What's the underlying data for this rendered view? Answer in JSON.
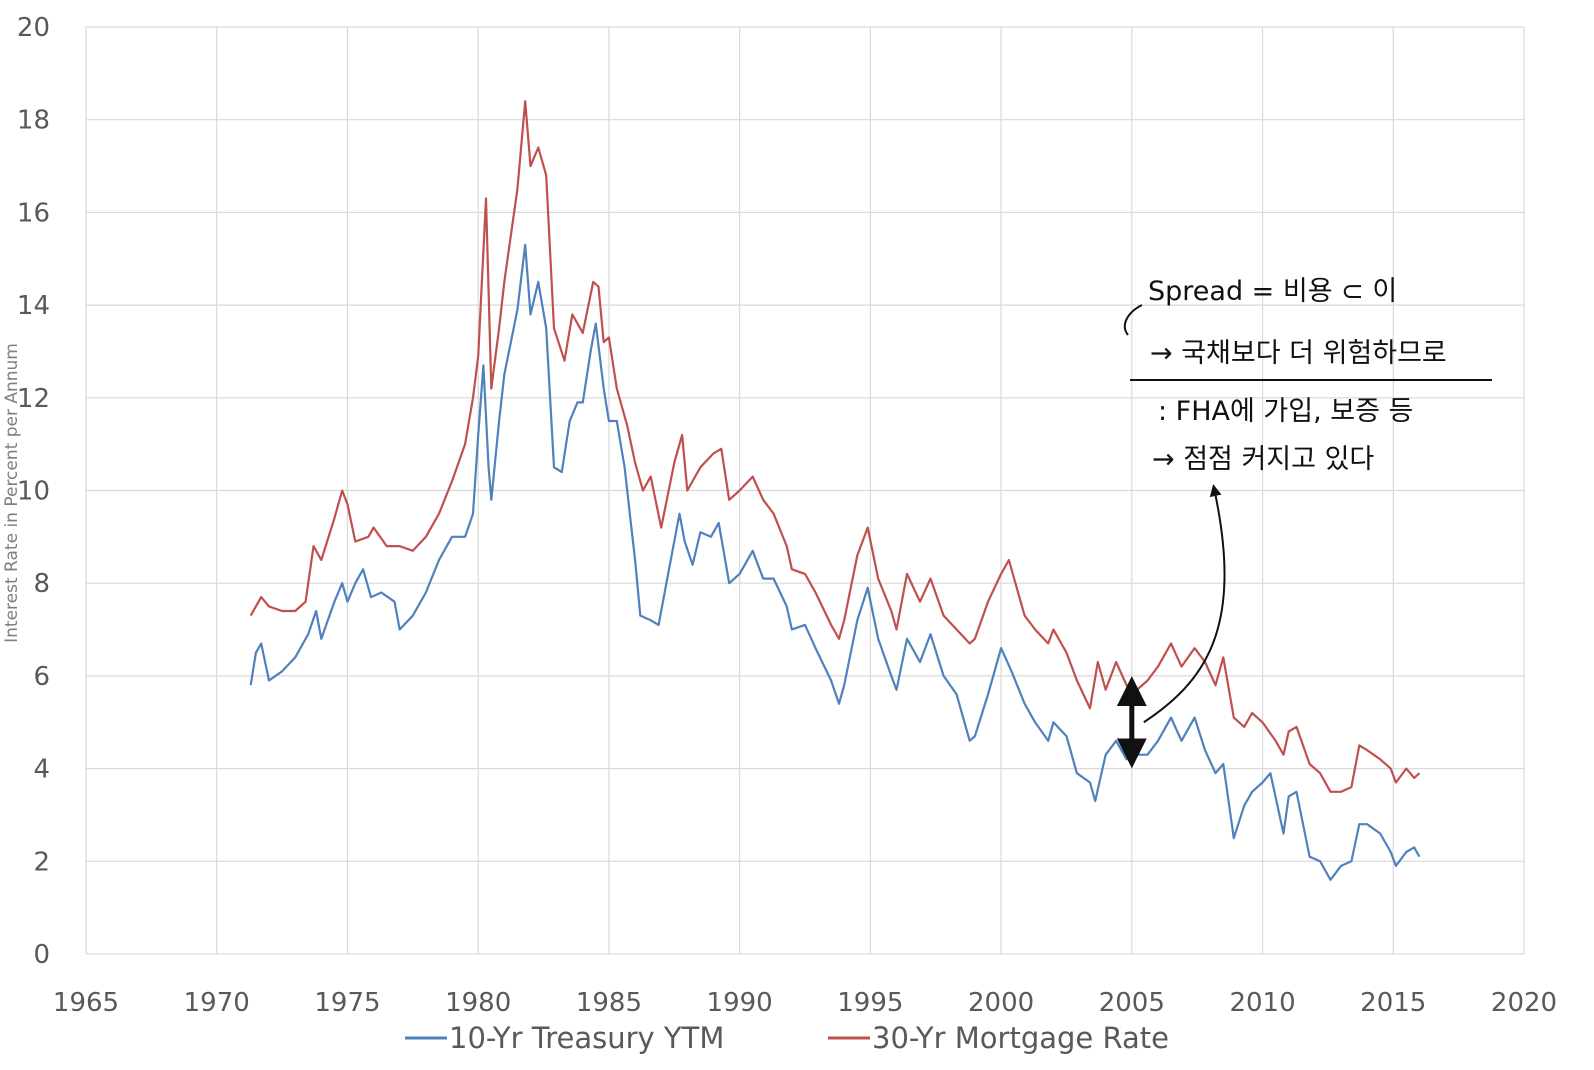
{
  "chart_data": {
    "type": "line",
    "title": "",
    "xlabel": "",
    "ylabel": "Interest Rate in Percent per Annum",
    "xlim": [
      1965,
      2020
    ],
    "ylim": [
      0,
      20
    ],
    "xticks": [
      1965,
      1970,
      1975,
      1980,
      1985,
      1990,
      1995,
      2000,
      2005,
      2010,
      2015,
      2020
    ],
    "yticks": [
      0,
      2,
      4,
      6,
      8,
      10,
      12,
      14,
      16,
      18,
      20
    ],
    "grid": true,
    "legend_position": "bottom",
    "series": [
      {
        "name": "10-Yr Treasury YTM",
        "color": "#4f81bd",
        "points": [
          [
            1971.3,
            5.8
          ],
          [
            1971.5,
            6.5
          ],
          [
            1971.7,
            6.7
          ],
          [
            1972.0,
            5.9
          ],
          [
            1972.5,
            6.1
          ],
          [
            1973.0,
            6.4
          ],
          [
            1973.5,
            6.9
          ],
          [
            1973.8,
            7.4
          ],
          [
            1974.0,
            6.8
          ],
          [
            1974.5,
            7.6
          ],
          [
            1974.8,
            8.0
          ],
          [
            1975.0,
            7.6
          ],
          [
            1975.3,
            8.0
          ],
          [
            1975.6,
            8.3
          ],
          [
            1975.9,
            7.7
          ],
          [
            1976.3,
            7.8
          ],
          [
            1976.8,
            7.6
          ],
          [
            1977.0,
            7.0
          ],
          [
            1977.5,
            7.3
          ],
          [
            1978.0,
            7.8
          ],
          [
            1978.5,
            8.5
          ],
          [
            1979.0,
            9.0
          ],
          [
            1979.5,
            9.0
          ],
          [
            1979.8,
            9.5
          ],
          [
            1980.0,
            11.2
          ],
          [
            1980.2,
            12.7
          ],
          [
            1980.4,
            10.5
          ],
          [
            1980.5,
            9.8
          ],
          [
            1980.8,
            11.5
          ],
          [
            1981.0,
            12.5
          ],
          [
            1981.5,
            13.9
          ],
          [
            1981.8,
            15.3
          ],
          [
            1982.0,
            13.8
          ],
          [
            1982.3,
            14.5
          ],
          [
            1982.6,
            13.5
          ],
          [
            1982.9,
            10.5
          ],
          [
            1983.2,
            10.4
          ],
          [
            1983.5,
            11.5
          ],
          [
            1983.8,
            11.9
          ],
          [
            1984.0,
            11.9
          ],
          [
            1984.3,
            13.0
          ],
          [
            1984.5,
            13.6
          ],
          [
            1984.8,
            12.2
          ],
          [
            1985.0,
            11.5
          ],
          [
            1985.3,
            11.5
          ],
          [
            1985.6,
            10.5
          ],
          [
            1985.8,
            9.5
          ],
          [
            1986.0,
            8.5
          ],
          [
            1986.2,
            7.3
          ],
          [
            1986.6,
            7.2
          ],
          [
            1986.9,
            7.1
          ],
          [
            1987.3,
            8.3
          ],
          [
            1987.7,
            9.5
          ],
          [
            1987.9,
            8.9
          ],
          [
            1988.2,
            8.4
          ],
          [
            1988.5,
            9.1
          ],
          [
            1988.9,
            9.0
          ],
          [
            1989.2,
            9.3
          ],
          [
            1989.6,
            8.0
          ],
          [
            1990.0,
            8.2
          ],
          [
            1990.5,
            8.7
          ],
          [
            1990.9,
            8.1
          ],
          [
            1991.3,
            8.1
          ],
          [
            1991.8,
            7.5
          ],
          [
            1992.0,
            7.0
          ],
          [
            1992.5,
            7.1
          ],
          [
            1992.9,
            6.6
          ],
          [
            1993.5,
            5.9
          ],
          [
            1993.8,
            5.4
          ],
          [
            1994.0,
            5.8
          ],
          [
            1994.5,
            7.2
          ],
          [
            1994.9,
            7.9
          ],
          [
            1995.3,
            6.8
          ],
          [
            1995.8,
            6.0
          ],
          [
            1996.0,
            5.7
          ],
          [
            1996.4,
            6.8
          ],
          [
            1996.9,
            6.3
          ],
          [
            1997.3,
            6.9
          ],
          [
            1997.8,
            6.0
          ],
          [
            1998.3,
            5.6
          ],
          [
            1998.8,
            4.6
          ],
          [
            1999.0,
            4.7
          ],
          [
            1999.5,
            5.6
          ],
          [
            2000.0,
            6.6
          ],
          [
            2000.4,
            6.1
          ],
          [
            2000.9,
            5.4
          ],
          [
            2001.3,
            5.0
          ],
          [
            2001.8,
            4.6
          ],
          [
            2002.0,
            5.0
          ],
          [
            2002.5,
            4.7
          ],
          [
            2002.9,
            3.9
          ],
          [
            2003.4,
            3.7
          ],
          [
            2003.6,
            3.3
          ],
          [
            2004.0,
            4.3
          ],
          [
            2004.4,
            4.6
          ],
          [
            2004.8,
            4.2
          ],
          [
            2005.2,
            4.3
          ],
          [
            2005.6,
            4.3
          ],
          [
            2006.0,
            4.6
          ],
          [
            2006.5,
            5.1
          ],
          [
            2006.9,
            4.6
          ],
          [
            2007.4,
            5.1
          ],
          [
            2007.8,
            4.4
          ],
          [
            2008.2,
            3.9
          ],
          [
            2008.5,
            4.1
          ],
          [
            2008.9,
            2.5
          ],
          [
            2009.3,
            3.2
          ],
          [
            2009.6,
            3.5
          ],
          [
            2010.0,
            3.7
          ],
          [
            2010.3,
            3.9
          ],
          [
            2010.8,
            2.6
          ],
          [
            2011.0,
            3.4
          ],
          [
            2011.3,
            3.5
          ],
          [
            2011.8,
            2.1
          ],
          [
            2012.2,
            2.0
          ],
          [
            2012.6,
            1.6
          ],
          [
            2013.0,
            1.9
          ],
          [
            2013.4,
            2.0
          ],
          [
            2013.7,
            2.8
          ],
          [
            2014.0,
            2.8
          ],
          [
            2014.5,
            2.6
          ],
          [
            2014.9,
            2.2
          ],
          [
            2015.1,
            1.9
          ],
          [
            2015.5,
            2.2
          ],
          [
            2015.8,
            2.3
          ],
          [
            2016.0,
            2.1
          ]
        ]
      },
      {
        "name": "30-Yr Mortgage Rate",
        "color": "#c0504d",
        "points": [
          [
            1971.3,
            7.3
          ],
          [
            1971.7,
            7.7
          ],
          [
            1972.0,
            7.5
          ],
          [
            1972.5,
            7.4
          ],
          [
            1973.0,
            7.4
          ],
          [
            1973.4,
            7.6
          ],
          [
            1973.7,
            8.8
          ],
          [
            1974.0,
            8.5
          ],
          [
            1974.5,
            9.4
          ],
          [
            1974.8,
            10.0
          ],
          [
            1975.0,
            9.7
          ],
          [
            1975.3,
            8.9
          ],
          [
            1975.8,
            9.0
          ],
          [
            1976.0,
            9.2
          ],
          [
            1976.5,
            8.8
          ],
          [
            1977.0,
            8.8
          ],
          [
            1977.5,
            8.7
          ],
          [
            1978.0,
            9.0
          ],
          [
            1978.5,
            9.5
          ],
          [
            1979.0,
            10.2
          ],
          [
            1979.5,
            11.0
          ],
          [
            1979.8,
            12.0
          ],
          [
            1980.0,
            12.9
          ],
          [
            1980.3,
            16.3
          ],
          [
            1980.5,
            12.2
          ],
          [
            1980.8,
            13.5
          ],
          [
            1981.0,
            14.5
          ],
          [
            1981.5,
            16.5
          ],
          [
            1981.8,
            18.4
          ],
          [
            1982.0,
            17.0
          ],
          [
            1982.3,
            17.4
          ],
          [
            1982.6,
            16.8
          ],
          [
            1982.9,
            13.5
          ],
          [
            1983.3,
            12.8
          ],
          [
            1983.6,
            13.8
          ],
          [
            1984.0,
            13.4
          ],
          [
            1984.4,
            14.5
          ],
          [
            1984.6,
            14.4
          ],
          [
            1984.8,
            13.2
          ],
          [
            1985.0,
            13.3
          ],
          [
            1985.3,
            12.2
          ],
          [
            1985.7,
            11.4
          ],
          [
            1986.0,
            10.6
          ],
          [
            1986.3,
            10.0
          ],
          [
            1986.6,
            10.3
          ],
          [
            1987.0,
            9.2
          ],
          [
            1987.5,
            10.6
          ],
          [
            1987.8,
            11.2
          ],
          [
            1988.0,
            10.0
          ],
          [
            1988.5,
            10.5
          ],
          [
            1989.0,
            10.8
          ],
          [
            1989.3,
            10.9
          ],
          [
            1989.6,
            9.8
          ],
          [
            1990.0,
            10.0
          ],
          [
            1990.5,
            10.3
          ],
          [
            1990.9,
            9.8
          ],
          [
            1991.3,
            9.5
          ],
          [
            1991.8,
            8.8
          ],
          [
            1992.0,
            8.3
          ],
          [
            1992.5,
            8.2
          ],
          [
            1992.9,
            7.8
          ],
          [
            1993.5,
            7.1
          ],
          [
            1993.8,
            6.8
          ],
          [
            1994.0,
            7.2
          ],
          [
            1994.5,
            8.6
          ],
          [
            1994.9,
            9.2
          ],
          [
            1995.3,
            8.1
          ],
          [
            1995.8,
            7.4
          ],
          [
            1996.0,
            7.0
          ],
          [
            1996.4,
            8.2
          ],
          [
            1996.9,
            7.6
          ],
          [
            1997.3,
            8.1
          ],
          [
            1997.8,
            7.3
          ],
          [
            1998.3,
            7.0
          ],
          [
            1998.8,
            6.7
          ],
          [
            1999.0,
            6.8
          ],
          [
            1999.5,
            7.6
          ],
          [
            2000.0,
            8.2
          ],
          [
            2000.3,
            8.5
          ],
          [
            2000.9,
            7.3
          ],
          [
            2001.3,
            7.0
          ],
          [
            2001.8,
            6.7
          ],
          [
            2002.0,
            7.0
          ],
          [
            2002.5,
            6.5
          ],
          [
            2002.9,
            5.9
          ],
          [
            2003.4,
            5.3
          ],
          [
            2003.7,
            6.3
          ],
          [
            2004.0,
            5.7
          ],
          [
            2004.4,
            6.3
          ],
          [
            2004.8,
            5.8
          ],
          [
            2005.2,
            5.7
          ],
          [
            2005.6,
            5.9
          ],
          [
            2006.0,
            6.2
          ],
          [
            2006.5,
            6.7
          ],
          [
            2006.9,
            6.2
          ],
          [
            2007.4,
            6.6
          ],
          [
            2007.8,
            6.3
          ],
          [
            2008.2,
            5.8
          ],
          [
            2008.5,
            6.4
          ],
          [
            2008.9,
            5.1
          ],
          [
            2009.3,
            4.9
          ],
          [
            2009.6,
            5.2
          ],
          [
            2010.0,
            5.0
          ],
          [
            2010.5,
            4.6
          ],
          [
            2010.8,
            4.3
          ],
          [
            2011.0,
            4.8
          ],
          [
            2011.3,
            4.9
          ],
          [
            2011.8,
            4.1
          ],
          [
            2012.2,
            3.9
          ],
          [
            2012.6,
            3.5
          ],
          [
            2013.0,
            3.5
          ],
          [
            2013.4,
            3.6
          ],
          [
            2013.7,
            4.5
          ],
          [
            2014.0,
            4.4
          ],
          [
            2014.5,
            4.2
          ],
          [
            2014.9,
            4.0
          ],
          [
            2015.1,
            3.7
          ],
          [
            2015.5,
            4.0
          ],
          [
            2015.8,
            3.8
          ],
          [
            2016.0,
            3.9
          ]
        ]
      }
    ],
    "annotations": {
      "lines": [
        "Spread = 비용 ⊂ 이",
        "→ 국채보다 더 위험하므로",
        ": FHA에 가입, 보증 등",
        "→ 점점 커지고 있다"
      ],
      "spread_arrow": {
        "x": 2005,
        "from": 5.8,
        "to": 4.2
      },
      "callout_target_year": 2009
    }
  }
}
